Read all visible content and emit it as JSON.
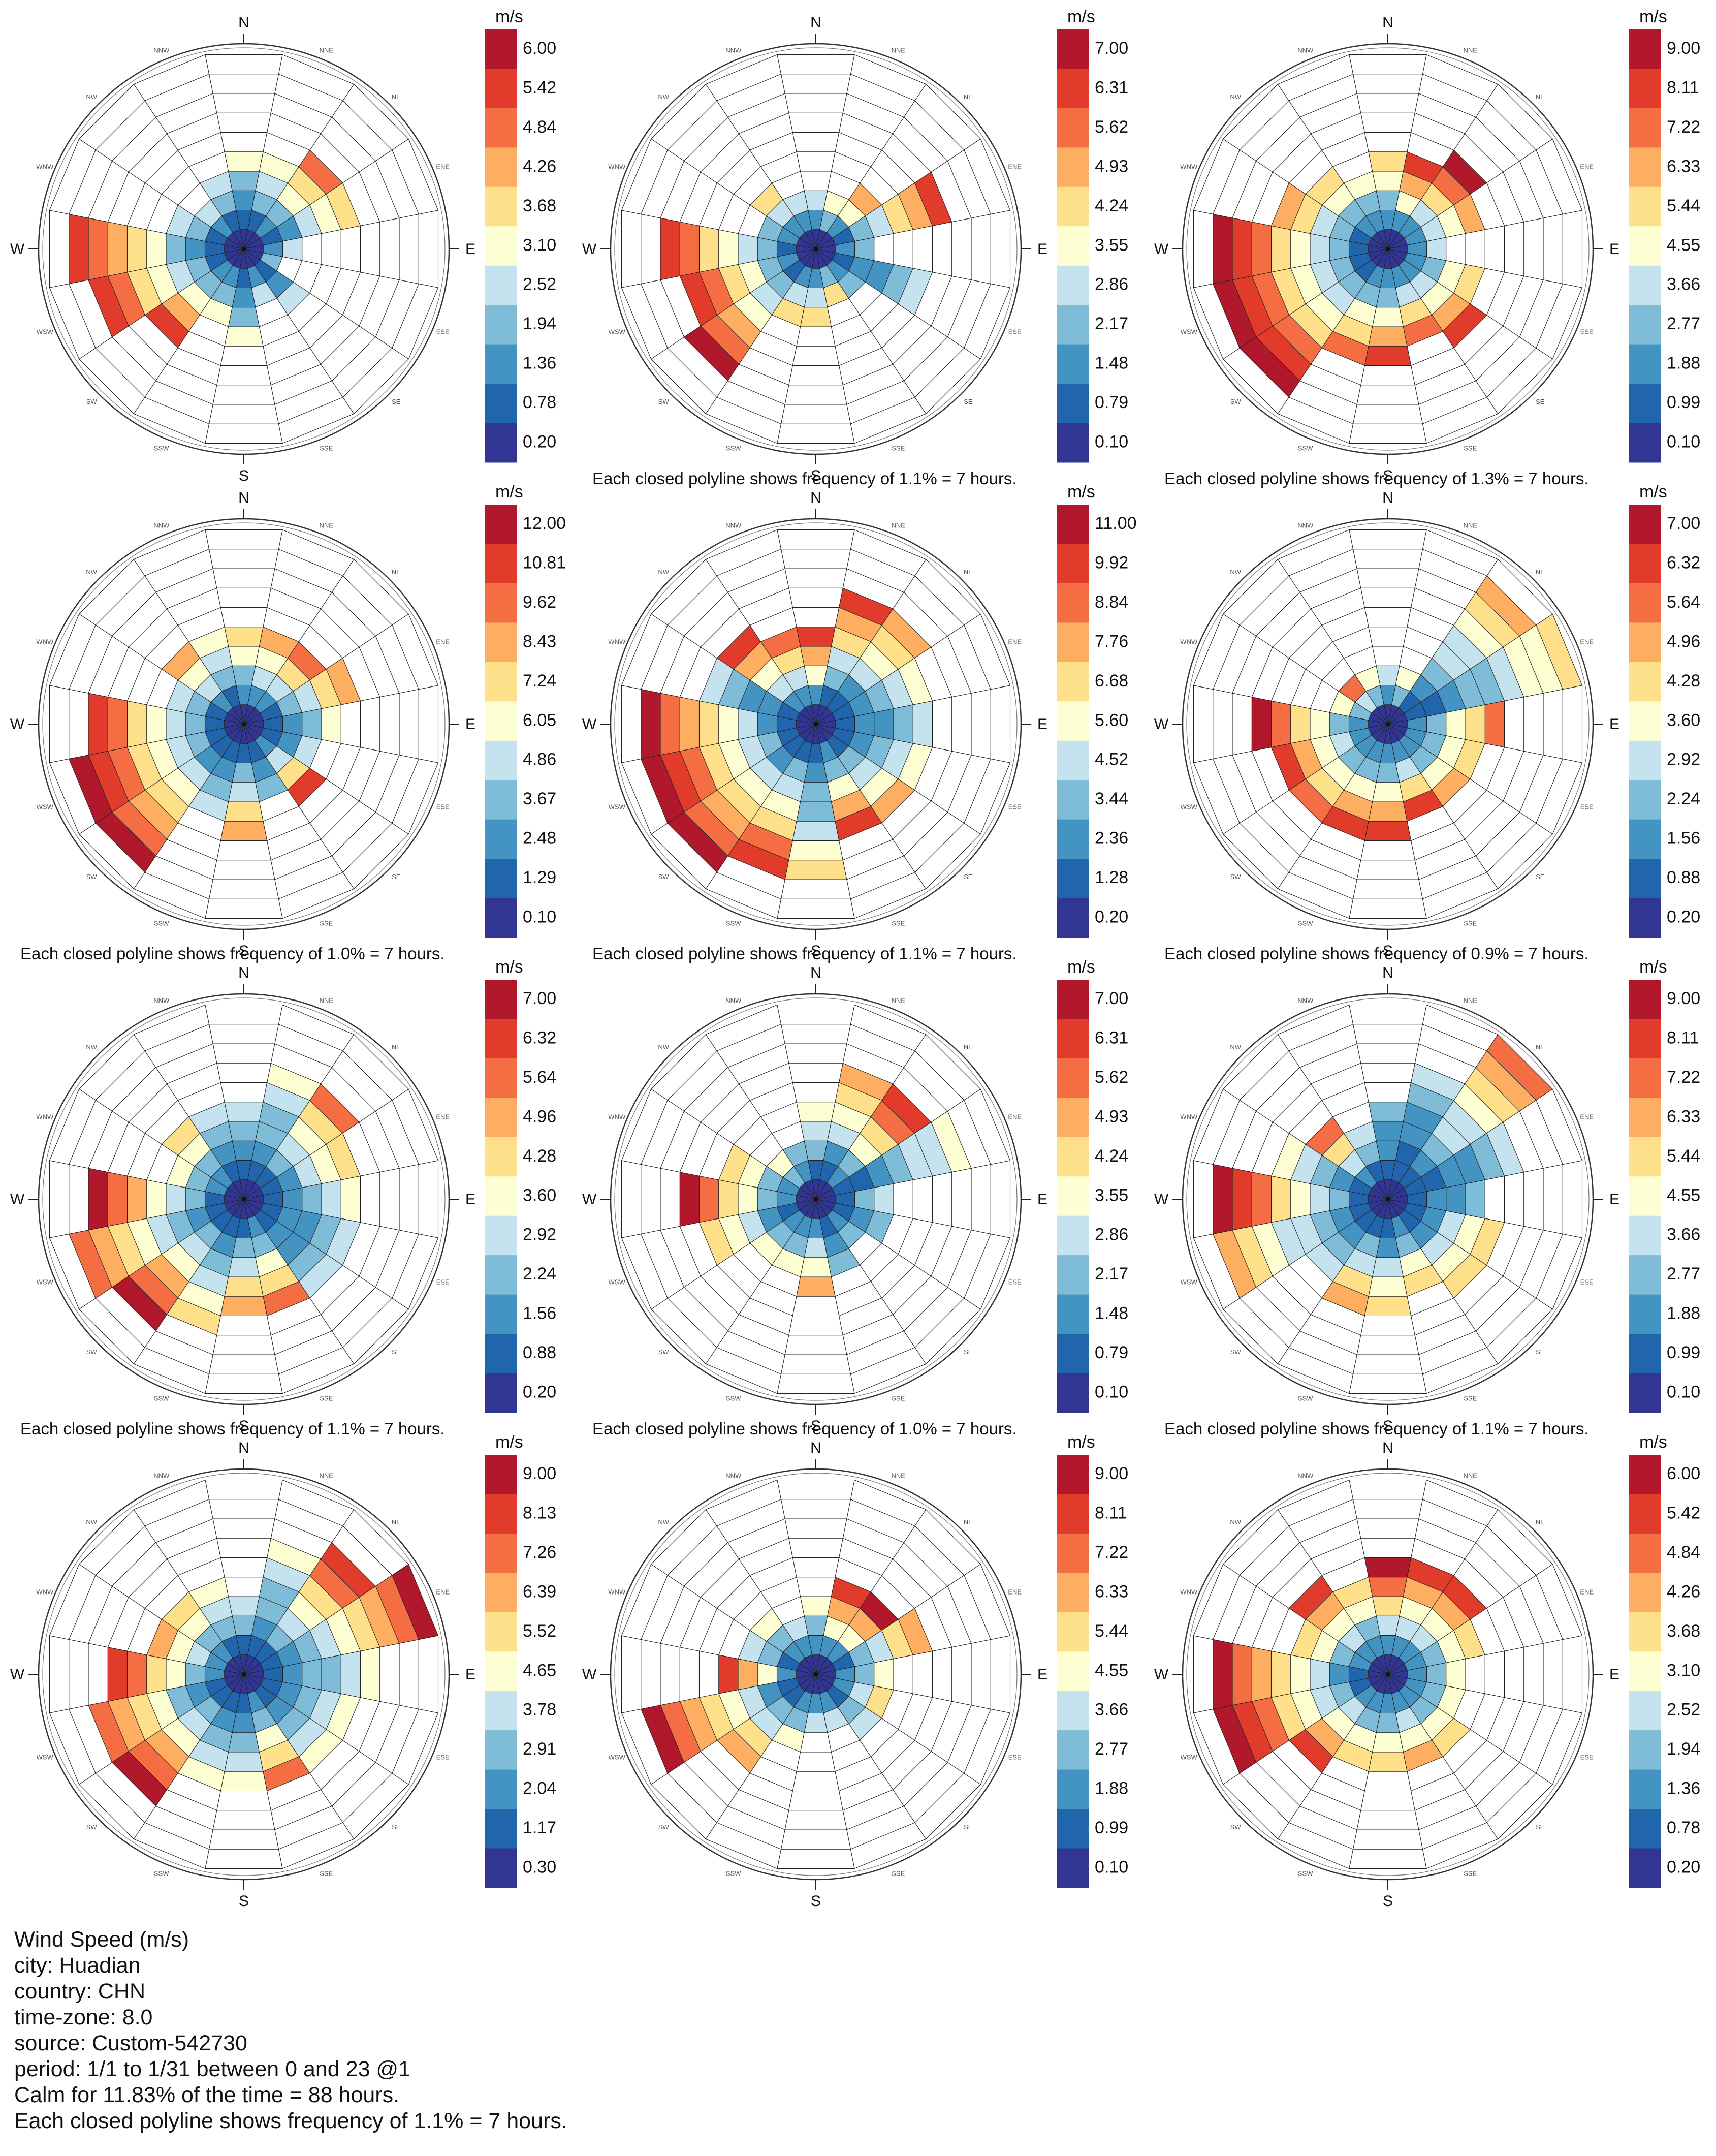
{
  "chart_data": {
    "type": "windrose",
    "directions": [
      "N",
      "NNE",
      "NE",
      "ENE",
      "E",
      "ESE",
      "SE",
      "SSE",
      "S",
      "SSW",
      "SW",
      "WSW",
      "W",
      "WNW",
      "NW",
      "NNW"
    ],
    "direction_ticks_main": [
      "N",
      "E",
      "S",
      "W"
    ],
    "units": "m/s",
    "palette": [
      "#313695",
      "#2166ac",
      "#4393c3",
      "#7fbcd7",
      "#c4e3ee",
      "#fdfed1",
      "#fee08b",
      "#fdae61",
      "#f46d43",
      "#e13b2c",
      "#b2182b"
    ],
    "roses": [
      {
        "caption": "",
        "legend": [
          "6.00",
          "5.42",
          "4.84",
          "4.26",
          "3.68",
          "3.10",
          "2.52",
          "1.94",
          "1.36",
          "0.78",
          "0.20"
        ],
        "radius": [
          5,
          5,
          6,
          6,
          3,
          2,
          4,
          3,
          5,
          4,
          6,
          8,
          9,
          4,
          3,
          4
        ],
        "speed": [
          0.45,
          0.5,
          0.8,
          0.6,
          0.4,
          0.3,
          0.35,
          0.4,
          0.45,
          0.5,
          0.85,
          0.9,
          0.9,
          0.4,
          0.35,
          0.4
        ]
      },
      {
        "caption": "",
        "legend": [
          "7.00",
          "6.31",
          "5.62",
          "4.93",
          "4.24",
          "3.55",
          "2.86",
          "2.17",
          "1.48",
          "0.79",
          "0.10"
        ],
        "radius": [
          3,
          3,
          4,
          7,
          3,
          6,
          3,
          3,
          4,
          4,
          8,
          7,
          8,
          3,
          4,
          3
        ],
        "speed": [
          0.4,
          0.5,
          0.7,
          0.85,
          0.3,
          0.4,
          0.3,
          0.6,
          0.55,
          0.6,
          0.95,
          0.9,
          0.9,
          0.3,
          0.55,
          0.4
        ]
      },
      {
        "caption": "",
        "legend": [
          "9.00",
          "8.11",
          "7.22",
          "6.33",
          "5.44",
          "4.55",
          "3.66",
          "2.77",
          "1.88",
          "0.99",
          "0.10"
        ],
        "radius": [
          5,
          5,
          6,
          5,
          3,
          5,
          6,
          5,
          6,
          6,
          9,
          9,
          9,
          6,
          5,
          4
        ],
        "speed": [
          0.6,
          0.9,
          0.95,
          0.7,
          0.4,
          0.6,
          0.9,
          0.8,
          0.85,
          0.8,
          1.0,
          1.0,
          1.0,
          0.7,
          0.6,
          0.5
        ]
      },
      {
        "caption": "",
        "legend": [
          "12.00",
          "10.81",
          "9.62",
          "8.43",
          "7.24",
          "6.05",
          "4.86",
          "3.67",
          "2.48",
          "1.29",
          "0.10"
        ],
        "radius": [
          5,
          5,
          5,
          6,
          5,
          4,
          5,
          4,
          6,
          5,
          9,
          9,
          8,
          4,
          5,
          5
        ],
        "speed": [
          0.6,
          0.7,
          0.8,
          0.7,
          0.45,
          0.35,
          0.85,
          0.3,
          0.7,
          0.4,
          0.95,
          1.0,
          0.9,
          0.4,
          0.7,
          0.5
        ]
      },
      {
        "caption": "Each closed polyline shows frequency of 1.1% = 7 hours.",
        "legend": [
          "11.00",
          "9.92",
          "8.84",
          "7.76",
          "6.68",
          "5.60",
          "4.52",
          "3.44",
          "2.36",
          "1.28",
          "0.20"
        ],
        "radius": [
          5,
          7,
          7,
          6,
          6,
          6,
          6,
          6,
          8,
          8,
          9,
          9,
          9,
          6,
          6,
          5
        ],
        "speed": [
          0.9,
          0.85,
          0.7,
          0.5,
          0.4,
          0.5,
          0.65,
          0.85,
          0.6,
          0.9,
          0.95,
          1.0,
          0.95,
          0.4,
          0.9,
          0.8
        ]
      },
      {
        "caption": "Each closed polyline shows frequency of 1.3% = 7 hours.",
        "legend": [
          "7.00",
          "6.32",
          "5.64",
          "4.96",
          "4.28",
          "3.60",
          "2.92",
          "2.24",
          "1.56",
          "0.88",
          "0.20"
        ],
        "radius": [
          3,
          3,
          9,
          10,
          6,
          5,
          5,
          5,
          6,
          6,
          6,
          6,
          7,
          3,
          3,
          3
        ],
        "speed": [
          0.4,
          0.5,
          0.7,
          0.6,
          0.75,
          0.6,
          0.65,
          0.85,
          0.85,
          0.85,
          0.8,
          0.9,
          0.95,
          0.5,
          0.8,
          0.5
        ]
      },
      {
        "caption": "Each closed polyline shows frequency of 1.0% = 7 hours.",
        "legend": [
          "7.00",
          "6.32",
          "5.64",
          "4.96",
          "4.28",
          "3.60",
          "2.92",
          "2.24",
          "1.56",
          "0.88",
          "0.20"
        ],
        "radius": [
          5,
          7,
          7,
          6,
          6,
          6,
          6,
          6,
          6,
          7,
          8,
          9,
          8,
          4,
          5,
          5
        ],
        "speed": [
          0.4,
          0.5,
          0.75,
          0.6,
          0.5,
          0.4,
          0.4,
          0.8,
          0.7,
          0.6,
          0.95,
          0.8,
          0.95,
          0.5,
          0.6,
          0.4
        ]
      },
      {
        "caption": "Each closed polyline shows frequency of 1.1% = 7 hours.",
        "legend": [
          "7.00",
          "6.31",
          "5.62",
          "4.93",
          "4.24",
          "3.55",
          "2.86",
          "2.17",
          "1.48",
          "0.79",
          "0.10"
        ],
        "radius": [
          5,
          7,
          7,
          8,
          4,
          4,
          3,
          4,
          5,
          4,
          4,
          6,
          7,
          5,
          3,
          3
        ],
        "speed": [
          0.5,
          0.7,
          0.9,
          0.5,
          0.4,
          0.3,
          0.3,
          0.3,
          0.7,
          0.5,
          0.5,
          0.6,
          0.95,
          0.6,
          0.5,
          0.3
        ]
      },
      {
        "caption": "Each closed polyline shows frequency of 0.9% = 7 hours.",
        "legend": [
          "9.00",
          "8.11",
          "7.22",
          "6.33",
          "5.44",
          "4.55",
          "3.66",
          "2.77",
          "1.88",
          "0.99",
          "0.10"
        ],
        "radius": [
          5,
          7,
          10,
          7,
          5,
          6,
          6,
          5,
          6,
          6,
          5,
          9,
          9,
          6,
          5,
          4
        ],
        "speed": [
          0.3,
          0.35,
          0.8,
          0.35,
          0.3,
          0.6,
          0.6,
          0.6,
          0.6,
          0.7,
          0.4,
          0.7,
          1.0,
          0.5,
          0.8,
          0.4
        ]
      },
      {
        "caption": "Each closed polyline shows frequency of 1.1% = 7 hours.",
        "legend": [
          "9.00",
          "8.13",
          "7.26",
          "6.39",
          "5.52",
          "4.65",
          "3.78",
          "2.91",
          "2.04",
          "1.17",
          "0.30"
        ],
        "radius": [
          4,
          7,
          8,
          10,
          7,
          6,
          6,
          6,
          6,
          6,
          8,
          8,
          7,
          5,
          5,
          5
        ],
        "speed": [
          0.4,
          0.5,
          0.9,
          0.95,
          0.5,
          0.5,
          0.5,
          0.8,
          0.5,
          0.5,
          0.95,
          0.8,
          0.9,
          0.7,
          0.6,
          0.5
        ]
      },
      {
        "caption": "Each closed polyline shows frequency of 1.0% = 7 hours.",
        "legend": [
          "9.00",
          "8.11",
          "7.22",
          "6.33",
          "5.44",
          "4.55",
          "3.66",
          "2.77",
          "1.88",
          "0.99",
          "0.10"
        ],
        "radius": [
          4,
          5,
          5,
          6,
          4,
          4,
          4,
          3,
          3,
          4,
          6,
          9,
          5,
          4,
          4,
          3
        ],
        "speed": [
          0.5,
          0.9,
          0.95,
          0.7,
          0.5,
          0.6,
          0.4,
          0.4,
          0.4,
          0.5,
          0.7,
          0.95,
          0.9,
          0.4,
          0.5,
          0.4
        ]
      },
      {
        "caption": "Each closed polyline shows frequency of 1.1% = 7 hours.",
        "legend": [
          "6.00",
          "5.42",
          "4.84",
          "4.26",
          "3.68",
          "3.10",
          "2.52",
          "1.94",
          "1.36",
          "0.78",
          "0.20"
        ],
        "radius": [
          6,
          6,
          6,
          5,
          4,
          4,
          5,
          5,
          5,
          5,
          6,
          9,
          9,
          5,
          6,
          5
        ],
        "speed": [
          0.95,
          0.9,
          0.9,
          0.6,
          0.5,
          0.5,
          0.6,
          0.7,
          0.6,
          0.6,
          0.9,
          1.0,
          0.95,
          0.6,
          0.9,
          0.6
        ]
      }
    ]
  },
  "info": {
    "title": "Wind Speed (m/s)",
    "city": "city: Huadian",
    "country": "country: CHN",
    "timezone": "time-zone: 8.0",
    "source": "source: Custom-542730",
    "period": "period: 1/1 to 1/31 between 0 and 23 @1",
    "calm": "Calm for 11.83% of the time = 88 hours.",
    "polyline": "Each closed polyline shows frequency of 1.1% = 7 hours."
  }
}
